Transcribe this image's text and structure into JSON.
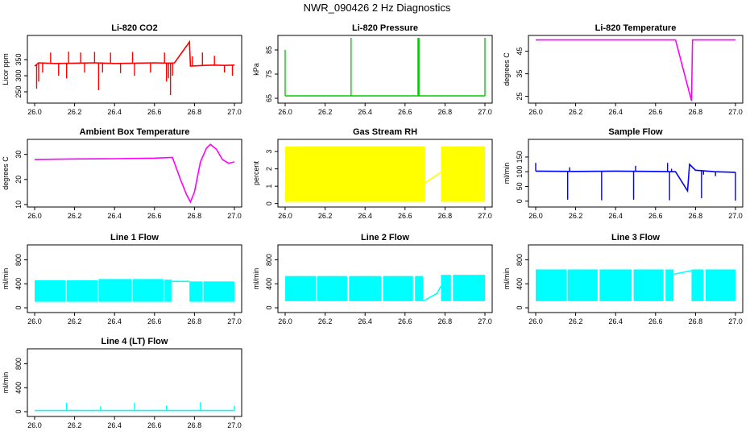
{
  "main_title": "NWR_090426  2 Hz Diagnostics",
  "chart_data": [
    {
      "id": "co2",
      "type": "line",
      "title": "Li-820 CO2",
      "ylabel": "Licor ppm",
      "color": "#ff0000",
      "xlim": [
        26.0,
        27.0
      ],
      "ylim": [
        215,
        425
      ],
      "yticks": [
        250,
        300,
        350
      ],
      "xticks": [
        "26.0",
        "26.2",
        "26.4",
        "26.6",
        "26.8",
        "27.0"
      ],
      "series": [
        {
          "x": [
            26.0,
            26.02,
            26.1,
            26.2,
            26.3,
            26.4,
            26.5,
            26.6,
            26.68,
            26.7,
            26.775,
            26.78,
            26.85,
            26.9,
            26.95,
            27.0
          ],
          "y": [
            330,
            340,
            338,
            339,
            340,
            338,
            339,
            340,
            339,
            340,
            405,
            330,
            332,
            333,
            332,
            333
          ]
        }
      ],
      "spikes": [
        [
          26.01,
          260
        ],
        [
          26.02,
          282
        ],
        [
          26.04,
          310
        ],
        [
          26.08,
          372
        ],
        [
          26.12,
          300
        ],
        [
          26.16,
          292
        ],
        [
          26.17,
          375
        ],
        [
          26.23,
          372
        ],
        [
          26.25,
          310
        ],
        [
          26.3,
          374
        ],
        [
          26.32,
          255
        ],
        [
          26.34,
          310
        ],
        [
          26.38,
          372
        ],
        [
          26.43,
          308
        ],
        [
          26.49,
          374
        ],
        [
          26.5,
          300
        ],
        [
          26.58,
          310
        ],
        [
          26.65,
          372
        ],
        [
          26.66,
          282
        ],
        [
          26.67,
          292
        ],
        [
          26.68,
          240
        ],
        [
          26.69,
          300
        ],
        [
          26.79,
          360
        ],
        [
          26.84,
          372
        ],
        [
          26.9,
          362
        ],
        [
          26.95,
          310
        ],
        [
          26.99,
          300
        ]
      ]
    },
    {
      "id": "pressure",
      "type": "line",
      "title": "Li-820 Pressure",
      "ylabel": "kPa",
      "color": "#00cc00",
      "xlim": [
        26.0,
        27.0
      ],
      "ylim": [
        63,
        91
      ],
      "yticks": [
        65,
        75,
        85
      ],
      "xticks": [
        "26.0",
        "26.2",
        "26.4",
        "26.6",
        "26.8",
        "27.0"
      ],
      "series": [
        {
          "x": [
            26.0,
            27.0
          ],
          "y": [
            66,
            66
          ]
        }
      ],
      "spikes": [
        [
          26.0,
          85
        ],
        [
          26.33,
          90
        ],
        [
          26.665,
          90
        ],
        [
          26.67,
          90
        ],
        [
          27.0,
          90
        ]
      ]
    },
    {
      "id": "temperature",
      "type": "line",
      "title": "Li-820 Temperature",
      "ylabel": "degrees C",
      "color": "#ff00ff",
      "xlim": [
        26.0,
        27.0
      ],
      "ylim": [
        22,
        52
      ],
      "yticks": [
        25,
        35,
        45
      ],
      "xticks": [
        "26.0",
        "26.2",
        "26.4",
        "26.6",
        "26.8",
        "27.0"
      ],
      "series": [
        {
          "x": [
            26.0,
            26.7,
            26.78,
            26.785,
            26.8,
            27.0
          ],
          "y": [
            50,
            50,
            23,
            50,
            50,
            50
          ]
        }
      ],
      "spikes": []
    },
    {
      "id": "ambient",
      "type": "line",
      "title": "Ambient Box Temperature",
      "ylabel": "degrees C",
      "color": "#ff00ff",
      "xlim": [
        26.0,
        27.0
      ],
      "ylim": [
        9,
        36
      ],
      "yticks": [
        10,
        20,
        30
      ],
      "xticks": [
        "26.0",
        "26.2",
        "26.4",
        "26.6",
        "26.8",
        "27.0"
      ],
      "series": [
        {
          "x": [
            26.0,
            26.2,
            26.4,
            26.6,
            26.69,
            26.73,
            26.76,
            26.78,
            26.8,
            26.83,
            26.86,
            26.88,
            26.91,
            26.94,
            26.97,
            27.0
          ],
          "y": [
            28,
            28.2,
            28.3,
            28.5,
            28.8,
            20,
            14,
            11,
            15,
            27,
            32.5,
            34,
            32,
            28,
            26.5,
            27
          ]
        }
      ],
      "spikes": []
    },
    {
      "id": "rh",
      "type": "band",
      "title": "Gas Stream RH",
      "ylabel": "percent",
      "color": "#ffff00",
      "xlim": [
        26.0,
        27.0
      ],
      "ylim": [
        -0.2,
        3.7
      ],
      "yticks": [
        0,
        1,
        2,
        3
      ],
      "xticks": [
        "26.0",
        "26.2",
        "26.4",
        "26.6",
        "26.8",
        "27.0"
      ],
      "bands": [
        {
          "x0": 26.0,
          "x1": 26.7,
          "lo": 0.1,
          "hi": 3.3
        },
        {
          "x0": 26.78,
          "x1": 27.0,
          "lo": 0.1,
          "hi": 3.3
        }
      ],
      "series": [
        {
          "x": [
            26.7,
            26.78
          ],
          "y": [
            1.2,
            1.8
          ]
        }
      ],
      "spikes": []
    },
    {
      "id": "sample",
      "type": "line",
      "title": "Sample Flow",
      "ylabel": "ml/min",
      "color": "#0000ff",
      "xlim": [
        26.0,
        27.0
      ],
      "ylim": [
        -20,
        210
      ],
      "yticks": [
        0,
        50,
        100,
        150
      ],
      "xticks": [
        "26.0",
        "26.2",
        "26.4",
        "26.6",
        "26.8",
        "27.0"
      ],
      "series": [
        {
          "x": [
            26.0,
            26.2,
            26.4,
            26.6,
            26.7,
            26.76,
            26.77,
            26.8,
            26.9,
            27.0
          ],
          "y": [
            102,
            101,
            102,
            101,
            100,
            35,
            125,
            105,
            100,
            98
          ]
        }
      ],
      "spikes": [
        [
          26.0,
          130
        ],
        [
          26.16,
          5
        ],
        [
          26.17,
          115
        ],
        [
          26.33,
          3
        ],
        [
          26.49,
          5
        ],
        [
          26.5,
          120
        ],
        [
          26.66,
          130
        ],
        [
          26.67,
          3
        ],
        [
          26.68,
          110
        ],
        [
          26.83,
          10
        ],
        [
          26.84,
          90
        ],
        [
          26.9,
          85
        ],
        [
          27.0,
          2
        ]
      ]
    },
    {
      "id": "line1",
      "type": "band",
      "title": "Line 1 Flow",
      "ylabel": "ml/min",
      "color": "#00ffff",
      "xlim": [
        26.0,
        27.0
      ],
      "ylim": [
        -80,
        1050
      ],
      "yticks": [
        0,
        400,
        800
      ],
      "xticks": [
        "26.0",
        "26.2",
        "26.4",
        "26.6",
        "26.8",
        "27.0"
      ],
      "bands": [
        {
          "x0": 26.0,
          "x1": 26.155,
          "lo": 100,
          "hi": 460
        },
        {
          "x0": 26.16,
          "x1": 26.315,
          "lo": 100,
          "hi": 460
        },
        {
          "x0": 26.32,
          "x1": 26.485,
          "lo": 100,
          "hi": 480
        },
        {
          "x0": 26.49,
          "x1": 26.645,
          "lo": 100,
          "hi": 480
        },
        {
          "x0": 26.65,
          "x1": 26.685,
          "lo": 100,
          "hi": 470
        },
        {
          "x0": 26.775,
          "x1": 26.84,
          "lo": 100,
          "hi": 440
        },
        {
          "x0": 26.845,
          "x1": 27.0,
          "lo": 100,
          "hi": 440
        }
      ],
      "series": [
        {
          "x": [
            26.685,
            26.775
          ],
          "y": [
            440,
            440
          ]
        }
      ],
      "spikes": []
    },
    {
      "id": "line2",
      "type": "band",
      "title": "Line 2 Flow",
      "ylabel": "ml/min",
      "color": "#00ffff",
      "xlim": [
        26.0,
        27.0
      ],
      "ylim": [
        -80,
        1050
      ],
      "yticks": [
        0,
        400,
        800
      ],
      "xticks": [
        "26.0",
        "26.2",
        "26.4",
        "26.6",
        "26.8",
        "27.0"
      ],
      "bands": [
        {
          "x0": 26.0,
          "x1": 26.155,
          "lo": 110,
          "hi": 530
        },
        {
          "x0": 26.16,
          "x1": 26.31,
          "lo": 110,
          "hi": 530
        },
        {
          "x0": 26.32,
          "x1": 26.48,
          "lo": 110,
          "hi": 530
        },
        {
          "x0": 26.49,
          "x1": 26.64,
          "lo": 110,
          "hi": 530
        },
        {
          "x0": 26.65,
          "x1": 26.69,
          "lo": 110,
          "hi": 530
        },
        {
          "x0": 26.78,
          "x1": 26.83,
          "lo": 110,
          "hi": 550
        },
        {
          "x0": 26.84,
          "x1": 27.0,
          "lo": 110,
          "hi": 550
        }
      ],
      "series": [
        {
          "x": [
            26.69,
            26.76,
            26.78
          ],
          "y": [
            110,
            240,
            360
          ]
        }
      ],
      "spikes": []
    },
    {
      "id": "line3",
      "type": "band",
      "title": "Line 3 Flow",
      "ylabel": "ml/min",
      "color": "#00ffff",
      "xlim": [
        26.0,
        27.0
      ],
      "ylim": [
        -80,
        1050
      ],
      "yticks": [
        0,
        400,
        800
      ],
      "xticks": [
        "26.0",
        "26.2",
        "26.4",
        "26.6",
        "26.8",
        "27.0"
      ],
      "bands": [
        {
          "x0": 26.0,
          "x1": 26.155,
          "lo": 110,
          "hi": 640
        },
        {
          "x0": 26.16,
          "x1": 26.31,
          "lo": 110,
          "hi": 640
        },
        {
          "x0": 26.32,
          "x1": 26.48,
          "lo": 110,
          "hi": 640
        },
        {
          "x0": 26.49,
          "x1": 26.64,
          "lo": 110,
          "hi": 640
        },
        {
          "x0": 26.65,
          "x1": 26.69,
          "lo": 110,
          "hi": 640
        },
        {
          "x0": 26.78,
          "x1": 26.84,
          "lo": 110,
          "hi": 640
        },
        {
          "x0": 26.85,
          "x1": 27.0,
          "lo": 110,
          "hi": 640
        }
      ],
      "series": [
        {
          "x": [
            26.69,
            26.78
          ],
          "y": [
            560,
            620
          ]
        }
      ],
      "spikes": []
    },
    {
      "id": "line4",
      "type": "line",
      "title": "Line 4 (LT) Flow",
      "ylabel": "ml/min",
      "color": "#00ffff",
      "xlim": [
        26.0,
        27.0
      ],
      "ylim": [
        -80,
        1050
      ],
      "yticks": [
        0,
        400,
        800
      ],
      "xticks": [
        "26.0",
        "26.2",
        "26.4",
        "26.6",
        "26.8",
        "27.0"
      ],
      "series": [
        {
          "x": [
            26.0,
            27.0
          ],
          "y": [
            20,
            20
          ]
        }
      ],
      "spikes": [
        [
          26.16,
          150
        ],
        [
          26.33,
          90
        ],
        [
          26.5,
          150
        ],
        [
          26.66,
          100
        ],
        [
          26.83,
          160
        ],
        [
          27.0,
          100
        ]
      ]
    }
  ]
}
